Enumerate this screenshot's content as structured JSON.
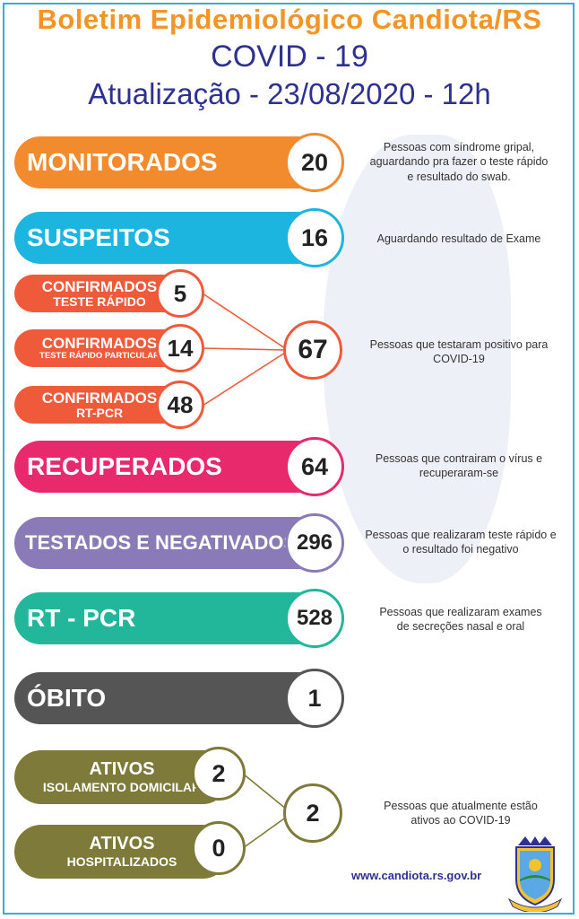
{
  "header": {
    "title": "Boletim Epidemiológico Candiota/RS",
    "subtitle": "COVID - 19",
    "update": "Atualização - 23/08/2020 - 12h"
  },
  "rows": {
    "monitorados": {
      "label": "MONITORADOS",
      "value": "20",
      "color": "#f28a2e",
      "desc": "Pessoas com síndrome gripal,\naguardando pra fazer o teste rápido\ne resultado do swab."
    },
    "suspeitos": {
      "label": "SUSPEITOS",
      "value": "16",
      "color": "#1cb5e0",
      "desc": "Aguardando resultado de Exame"
    },
    "conf_rapido": {
      "line1": "CONFIRMADOS",
      "line2": "TESTE RÁPIDO",
      "value": "5"
    },
    "conf_particular": {
      "line1": "CONFIRMADOS",
      "line2": "TESTE RÁPIDO PARTICULAR",
      "value": "14"
    },
    "conf_rtpcr": {
      "line1": "CONFIRMADOS",
      "line2": "RT-PCR",
      "value": "48"
    },
    "confirmados_total": {
      "value": "67",
      "color": "#ef5a3a",
      "desc": "Pessoas que testaram positivo para\nCOVID-19"
    },
    "recuperados": {
      "label": "RECUPERADOS",
      "value": "64",
      "color": "#e8296c",
      "desc": "Pessoas que contrairam o vírus e\nrecuperaram-se"
    },
    "testados": {
      "label": "TESTADOS E NEGATIVADOS",
      "value": "296",
      "color": "#8a7ab8",
      "desc": "Pessoas que realizaram teste rápido e\no resultado foi negativo"
    },
    "rtpcr": {
      "label": "RT - PCR",
      "value": "528",
      "color": "#22b79a",
      "desc": "Pessoas que realizaram exames\nde secreções nasal e oral"
    },
    "obito": {
      "label": "ÓBITO",
      "value": "1",
      "color": "#555555"
    },
    "ativos_domiciliar": {
      "line1": "ATIVOS",
      "line2": "ISOLAMENTO DOMICILAR",
      "value": "2"
    },
    "ativos_hospital": {
      "line1": "ATIVOS",
      "line2": "HOSPITALIZADOS",
      "value": "0"
    },
    "ativos_total": {
      "value": "2",
      "color": "#7d7a3a",
      "desc": "Pessoas que atualmente estão\nativos ao COVID-19"
    }
  },
  "footer": {
    "url": "www.candiota.rs.gov.br"
  }
}
